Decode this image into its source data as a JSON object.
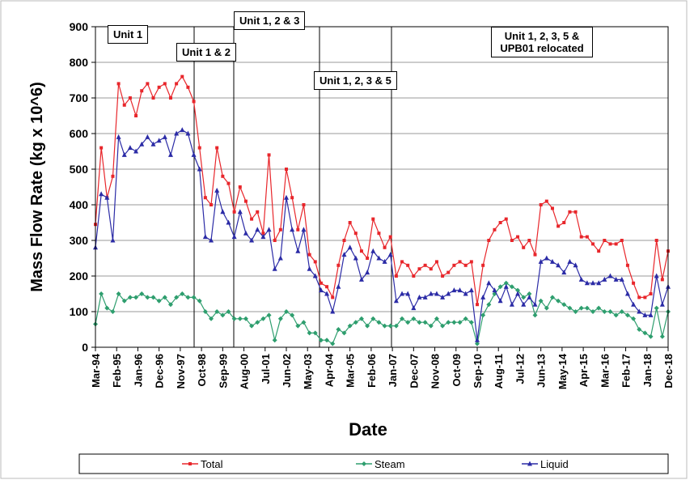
{
  "chart_data": {
    "type": "line",
    "x_label": "Date",
    "y_label": "Mass Flow Rate (kg x 10^6)",
    "annotations": [
      "Unit 1",
      "Unit 1 & 2",
      "Unit 1, 2 & 3",
      "Unit 1, 2, 3 & 5",
      "Unit 1, 2, 3, 5 & UPB01 relocated"
    ],
    "x": [
      "Mar-94",
      "Jun-94",
      "Sep-94",
      "Dec-94",
      "Mar-95",
      "Jun-95",
      "Sep-95",
      "Dec-95",
      "Mar-96",
      "Jun-96",
      "Sep-96",
      "Dec-96",
      "Mar-97",
      "Jun-97",
      "Sep-97",
      "Dec-97",
      "Mar-98",
      "Jun-98",
      "Sep-98",
      "Dec-98",
      "Mar-99",
      "Jun-99",
      "Sep-99",
      "Dec-99",
      "Mar-00",
      "Jun-00",
      "Sep-00",
      "Dec-00",
      "Mar-01",
      "Jun-01",
      "Sep-01",
      "Dec-01",
      "Mar-02",
      "Jun-02",
      "Sep-02",
      "Dec-02",
      "Mar-03",
      "Jun-03",
      "Sep-03",
      "Dec-03",
      "Mar-04",
      "Jun-04",
      "Sep-04",
      "Dec-04",
      "Mar-05",
      "Jun-05",
      "Sep-05",
      "Dec-05",
      "Mar-06",
      "Jun-06",
      "Sep-06",
      "Dec-06",
      "Mar-07",
      "Jun-07",
      "Sep-07",
      "Dec-07",
      "Mar-08",
      "Jun-08",
      "Sep-08",
      "Dec-08",
      "Mar-09",
      "Jun-09",
      "Sep-09",
      "Dec-09",
      "Mar-10",
      "Jun-10",
      "Sep-10",
      "Dec-10",
      "Mar-11",
      "Jun-11",
      "Sep-11",
      "Dec-11",
      "Mar-12",
      "Jun-12",
      "Sep-12",
      "Dec-12",
      "Mar-13",
      "Jun-13",
      "Sep-13",
      "Dec-13",
      "Mar-14",
      "Jun-14",
      "Sep-14",
      "Dec-14",
      "Mar-15",
      "Jun-15",
      "Sep-15",
      "Dec-15",
      "Mar-16",
      "Jun-16",
      "Sep-16",
      "Dec-16",
      "Mar-17",
      "Jun-17",
      "Sep-17",
      "Dec-17",
      "Mar-18",
      "Jun-18",
      "Sep-18",
      "Dec-18"
    ],
    "series": [
      {
        "name": "Total",
        "color": "#e8262b",
        "marker": "square",
        "values": [
          345,
          560,
          420,
          480,
          740,
          680,
          700,
          650,
          720,
          740,
          700,
          730,
          740,
          700,
          740,
          760,
          730,
          690,
          560,
          420,
          400,
          560,
          480,
          460,
          380,
          450,
          410,
          360,
          380,
          320,
          540,
          300,
          330,
          500,
          420,
          330,
          400,
          260,
          240,
          180,
          170,
          140,
          230,
          300,
          350,
          320,
          270,
          250,
          360,
          320,
          280,
          310,
          200,
          240,
          230,
          200,
          220,
          230,
          220,
          240,
          200,
          210,
          230,
          240,
          230,
          240,
          120,
          230,
          300,
          330,
          350,
          360,
          300,
          310,
          280,
          300,
          260,
          400,
          410,
          390,
          340,
          350,
          380,
          380,
          310,
          310,
          290,
          270,
          300,
          290,
          290,
          300,
          230,
          180,
          140,
          140,
          150,
          300,
          190,
          270
        ]
      },
      {
        "name": "Steam",
        "color": "#2e9e6e",
        "marker": "diamond",
        "values": [
          65,
          150,
          110,
          100,
          150,
          130,
          140,
          140,
          150,
          140,
          140,
          130,
          140,
          120,
          140,
          150,
          140,
          140,
          130,
          100,
          80,
          100,
          90,
          100,
          80,
          80,
          80,
          60,
          70,
          80,
          90,
          20,
          80,
          100,
          90,
          60,
          70,
          40,
          40,
          20,
          20,
          10,
          50,
          40,
          60,
          70,
          80,
          60,
          80,
          70,
          60,
          60,
          60,
          80,
          70,
          80,
          70,
          70,
          60,
          80,
          60,
          70,
          70,
          70,
          80,
          70,
          10,
          90,
          120,
          150,
          170,
          180,
          170,
          160,
          140,
          150,
          90,
          130,
          110,
          140,
          130,
          120,
          110,
          100,
          110,
          110,
          100,
          110,
          100,
          100,
          90,
          100,
          90,
          80,
          50,
          40,
          30,
          110,
          30,
          100
        ]
      },
      {
        "name": "Liquid",
        "color": "#2b2ba6",
        "marker": "triangle",
        "values": [
          280,
          430,
          420,
          300,
          590,
          540,
          560,
          550,
          570,
          590,
          570,
          580,
          590,
          540,
          600,
          610,
          600,
          540,
          500,
          310,
          300,
          440,
          380,
          350,
          310,
          380,
          320,
          300,
          330,
          310,
          330,
          220,
          250,
          420,
          330,
          270,
          330,
          220,
          200,
          160,
          150,
          100,
          170,
          260,
          280,
          250,
          190,
          210,
          270,
          250,
          240,
          260,
          130,
          150,
          150,
          110,
          140,
          140,
          150,
          150,
          140,
          150,
          160,
          160,
          150,
          160,
          20,
          140,
          180,
          160,
          130,
          170,
          120,
          150,
          120,
          140,
          120,
          240,
          250,
          240,
          230,
          210,
          240,
          230,
          190,
          180,
          180,
          180,
          190,
          200,
          190,
          190,
          150,
          120,
          100,
          90,
          90,
          200,
          120,
          170
        ]
      }
    ],
    "xlim": [
      "Mar-94",
      "Dec-18"
    ],
    "xticks": [
      "Mar-94",
      "Feb-95",
      "Jan-96",
      "Dec-96",
      "Nov-97",
      "Oct-98",
      "Sep-99",
      "Aug-00",
      "Jul-01",
      "Jun-02",
      "May-03",
      "Apr-04",
      "Mar-05",
      "Feb-06",
      "Jan-07",
      "Dec-07",
      "Nov-08",
      "Oct-09",
      "Sep-10",
      "Aug-11",
      "Jul-12",
      "Jun-13",
      "May-14",
      "Apr-15",
      "Mar-16",
      "Feb-17",
      "Jan-18",
      "Dec-18"
    ],
    "ylim": [
      0,
      900
    ],
    "yticks": [
      0,
      100,
      200,
      300,
      400,
      500,
      600,
      700,
      800,
      900
    ],
    "grid": true
  }
}
